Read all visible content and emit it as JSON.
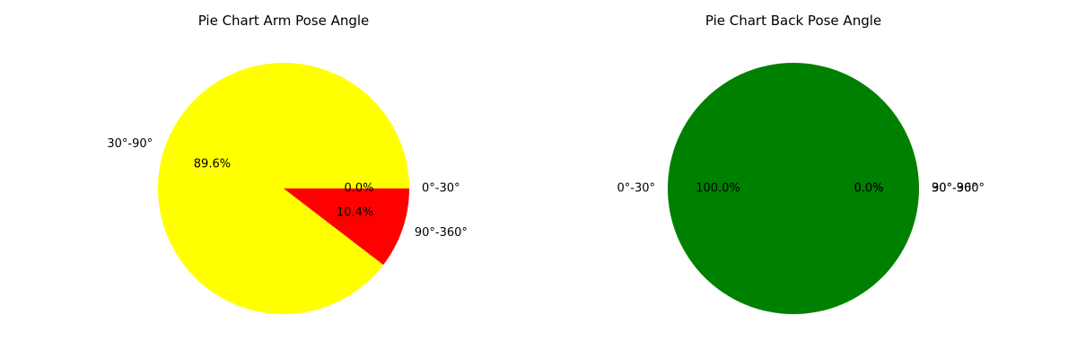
{
  "chart_data": [
    {
      "type": "pie",
      "title": "Pie Chart Arm Pose Angle",
      "slices": [
        {
          "label": "0°-30°",
          "value": 0.0,
          "pct_label": "0.0%",
          "color": "#ff0000"
        },
        {
          "label": "30°-90°",
          "value": 89.6,
          "pct_label": "89.6%",
          "color": "#ffff00"
        },
        {
          "label": "90°-360°",
          "value": 10.4,
          "pct_label": "10.4%",
          "color": "#ff0000"
        }
      ],
      "start_angle_deg": 0,
      "direction": "counterclockwise"
    },
    {
      "type": "pie",
      "title": "Pie Chart Back Pose Angle",
      "slices": [
        {
          "label": "0°-30°",
          "value": 100.0,
          "pct_label": "100.0%",
          "color": "#008000"
        },
        {
          "label": "30°-90°",
          "value": 0.0,
          "pct_label": "0.0%",
          "color": "#008000"
        },
        {
          "label": "90°-360°",
          "value": 0.0,
          "pct_label": "0.0%",
          "color": "#008000"
        }
      ],
      "start_angle_deg": 0,
      "direction": "counterclockwise"
    }
  ]
}
